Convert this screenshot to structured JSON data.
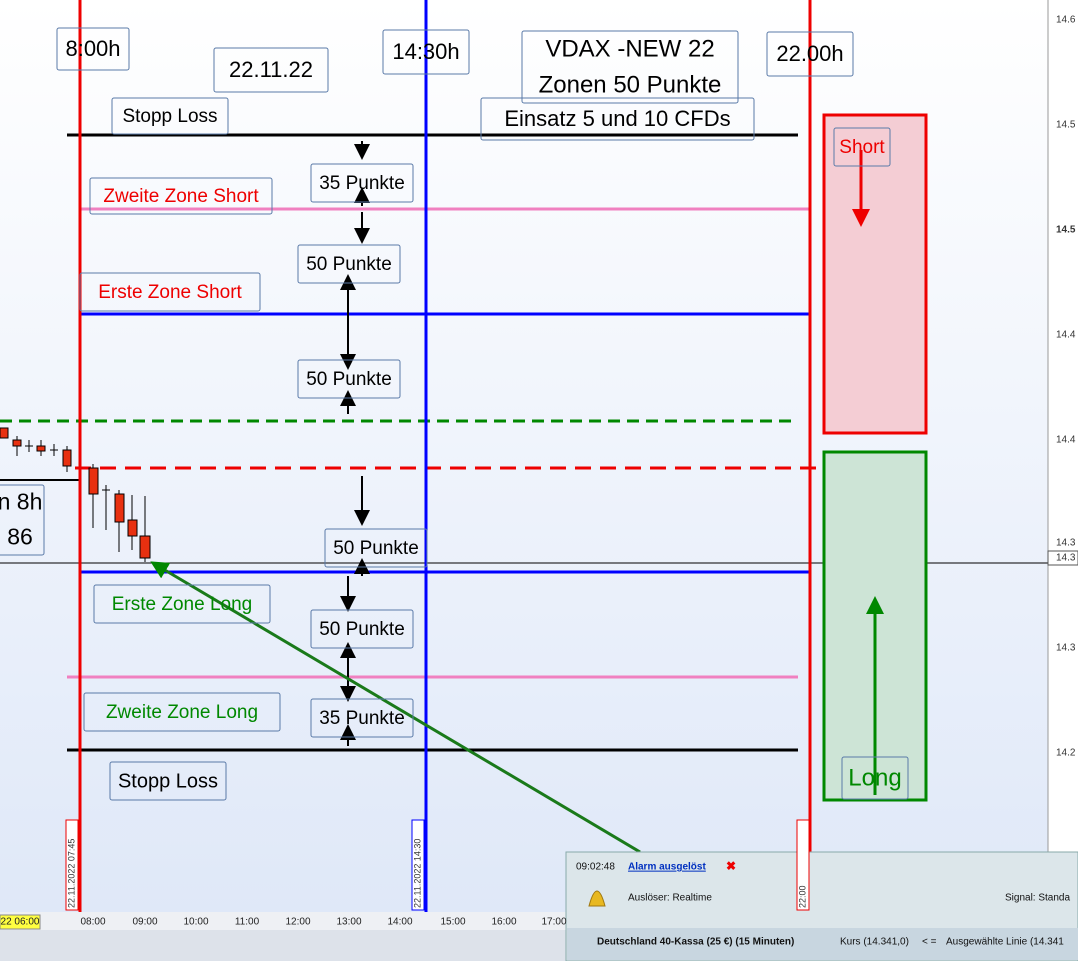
{
  "notes": [
    {
      "lines": [
        "8:00h"
      ]
    },
    {
      "lines": [
        "22.11.22"
      ]
    },
    {
      "lines": [
        "14:30h"
      ]
    },
    {
      "lines": [
        "VDAX -NEW 22",
        "Zonen 50  Punkte"
      ]
    },
    {
      "lines": [
        "22.00h"
      ]
    },
    {
      "lines": [
        "Einsatz 5 und 10 CFDs"
      ]
    },
    {
      "lines": [
        "Stopp Loss"
      ]
    },
    {
      "lines": [
        "35 Punkte"
      ]
    },
    {
      "lines": [
        "Zweite Zone Short"
      ]
    },
    {
      "lines": [
        "50 Punkte"
      ]
    },
    {
      "lines": [
        "Erste Zone Short"
      ]
    },
    {
      "lines": [
        "50 Punkte"
      ]
    },
    {
      "lines": [
        "50 Punkte"
      ]
    },
    {
      "lines": [
        "Erste Zone Long"
      ]
    },
    {
      "lines": [
        "50 Punkte"
      ]
    },
    {
      "lines": [
        "Zweite Zone Long"
      ]
    },
    {
      "lines": [
        "35 Punkte"
      ]
    },
    {
      "lines": [
        "Stopp Loss"
      ]
    },
    {
      "lines": [
        "Short"
      ]
    },
    {
      "lines": [
        "Long"
      ]
    },
    {
      "lines": [
        "n 8h",
        "86"
      ]
    }
  ],
  "price_labels": [
    "14.6",
    "14.5",
    "14.5",
    "14.4",
    "14.4",
    "14.3",
    "14.3",
    "14.3",
    "14.2"
  ],
  "time_labels": [
    "22 06:00",
    "08:00",
    "09:00",
    "10:00",
    "11:00",
    "12:00",
    "13:00",
    "14:00",
    "15:00",
    "16:00",
    "17:00"
  ],
  "line_labels": [
    "22.11.2022 07:45",
    "22.11.2022 14:30",
    "22:00"
  ],
  "popup": {
    "time": "09:02:48",
    "title": "Alarm ausgelöst",
    "trigger": "Auslöser: Realtime",
    "signal": "Signal: Standa",
    "instrument": "Deutschland 40-Kassa (25 €) (15 Minuten)",
    "price": "Kurs (14.341,0)",
    "operator": "< =",
    "line": "Ausgewählte Linie (14.341"
  }
}
